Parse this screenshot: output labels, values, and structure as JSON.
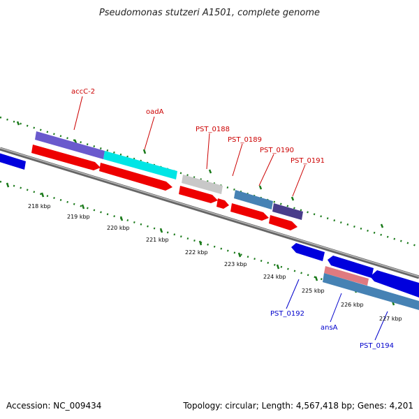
{
  "title": "Pseudomonas stutzeri A1501, complete genome",
  "footer": {
    "accession": "Accession: NC_009434",
    "topology": "Topology: circular; Length: 4,567,418 bp; Genes: 4,201"
  },
  "colors": {
    "backbone": "#888888",
    "tick_green": "#1a7a1a",
    "label_red": "#cc0000",
    "label_blue": "#0000cc"
  },
  "scale": {
    "ticks": [
      "218 kbp",
      "219 kbp",
      "220 kbp",
      "221 kbp",
      "222 kbp",
      "223 kbp",
      "224 kbp",
      "225 kbp",
      "226 kbp",
      "227 kbp"
    ]
  },
  "genes": {
    "upper_labels": [
      "accC-2",
      "oadA",
      "PST_0188",
      "PST_0189",
      "PST_0190",
      "PST_0191"
    ],
    "lower_labels": [
      "PST_0192",
      "ansA",
      "PST_0194"
    ]
  }
}
